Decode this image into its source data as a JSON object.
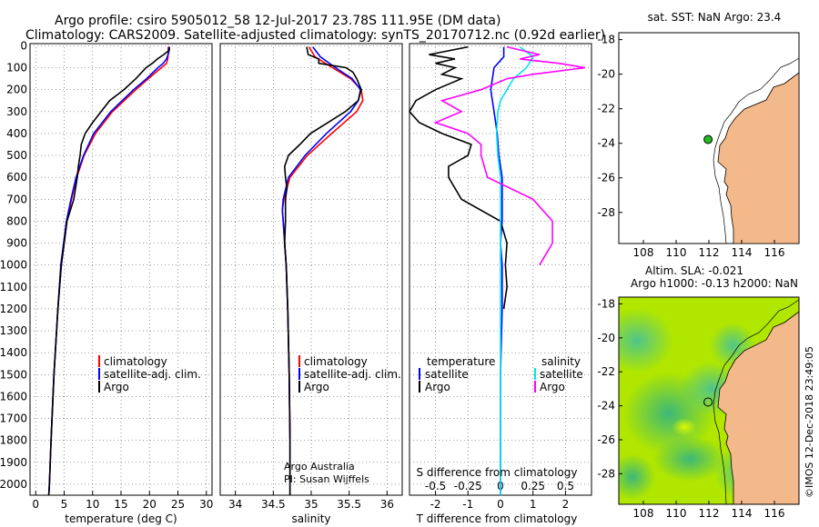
{
  "header": {
    "line1": "Argo profile: csiro 5905012_58 12-Jul-2017 23.78S 111.95E (DM data)",
    "line2": "Climatology: CARS2009. Satellite-adjusted climatology: synTS_20170712.nc (0.92d earlier)"
  },
  "colors": {
    "climatology": "#ff0000",
    "satellite": "#0000ff",
    "argo": "#000000",
    "sat_salinity": "#00e5ee",
    "argo_salinity": "#ff00ff",
    "land": "#f4b98a",
    "field": "#b0e600"
  },
  "depth_axis": {
    "ticks": [
      "0",
      "100",
      "200",
      "300",
      "400",
      "500",
      "600",
      "700",
      "800",
      "900",
      "1000",
      "1100",
      "1200",
      "1300",
      "1400",
      "1500",
      "1600",
      "1700",
      "1800",
      "1900",
      "2000"
    ]
  },
  "credits": {
    "line1": "Argo Australia",
    "line2": "PI: Susan Wijffels"
  },
  "watermark": "©IMOS 12-Dec-2018 23:49:05",
  "chart_data": [
    {
      "type": "line",
      "id": "temperature",
      "xlabel": "temperature (deg C)",
      "xlim": [
        -1,
        31
      ],
      "ylim": [
        2050,
        -10
      ],
      "xticks": [
        "0",
        "5",
        "10",
        "15",
        "20",
        "25",
        "30"
      ],
      "legend": [
        "climatology",
        "satellite-adj. clim.",
        "Argo"
      ],
      "series": [
        {
          "name": "climatology",
          "depth": [
            5,
            30,
            60,
            80,
            100,
            150,
            200,
            300,
            400,
            500,
            600,
            700,
            800,
            1000,
            1200,
            1500,
            1800,
            2000,
            2050
          ],
          "values": [
            23.3,
            23.3,
            23.2,
            23.0,
            22.1,
            19.8,
            17.6,
            13.5,
            10.5,
            8.5,
            7.2,
            6.3,
            5.5,
            4.5,
            3.9,
            3.2,
            2.7,
            2.4,
            2.3
          ]
        },
        {
          "name": "satellite-adj. clim.",
          "depth": [
            5,
            30,
            60,
            80,
            100,
            150,
            200,
            300,
            400,
            500,
            600,
            700,
            800,
            1000,
            1200,
            1500,
            1800,
            2000,
            2050
          ],
          "values": [
            23.4,
            23.4,
            23.0,
            22.4,
            21.5,
            19.5,
            17.2,
            13.2,
            10.2,
            8.4,
            7.1,
            6.2,
            5.4,
            4.4,
            3.9,
            3.2,
            2.7,
            2.4,
            2.3
          ]
        },
        {
          "name": "Argo",
          "depth": [
            5,
            20,
            40,
            60,
            80,
            100,
            150,
            200,
            250,
            300,
            350,
            400,
            450,
            500,
            550,
            600,
            700,
            800,
            900,
            1000,
            1200,
            1500,
            1800,
            2000,
            2050
          ],
          "values": [
            23.5,
            23.5,
            22.5,
            21.4,
            20.5,
            19.4,
            17.6,
            15.5,
            13.0,
            11.5,
            10.0,
            8.7,
            8.0,
            7.8,
            7.5,
            7.3,
            6.7,
            5.5,
            5.0,
            4.5,
            3.9,
            3.2,
            2.7,
            2.4,
            2.3
          ]
        }
      ]
    },
    {
      "type": "line",
      "id": "salinity",
      "xlabel": "salinity",
      "xlim": [
        33.8,
        36.2
      ],
      "ylim": [
        2050,
        -10
      ],
      "xticks": [
        "34",
        "34.5",
        "35",
        "35.5",
        "36"
      ],
      "legend": [
        "climatology",
        "satellite-adj. clim.",
        "Argo"
      ],
      "series": [
        {
          "name": "climatology",
          "depth": [
            5,
            50,
            100,
            150,
            200,
            250,
            300,
            400,
            500,
            600,
            700,
            750,
            800,
            900,
            1000,
            1200,
            1500,
            1800,
            2000,
            2050
          ],
          "values": [
            34.97,
            35.05,
            35.28,
            35.52,
            35.66,
            35.68,
            35.6,
            35.27,
            34.95,
            34.72,
            34.64,
            34.62,
            34.63,
            34.65,
            34.67,
            34.69,
            34.71,
            34.72,
            34.72,
            34.72
          ]
        },
        {
          "name": "satellite-adj. clim.",
          "depth": [
            5,
            50,
            100,
            150,
            200,
            250,
            300,
            400,
            500,
            600,
            700,
            750,
            800,
            900,
            1000,
            1200,
            1500,
            1800,
            2000,
            2050
          ],
          "values": [
            35.02,
            35.12,
            35.32,
            35.54,
            35.65,
            35.62,
            35.52,
            35.2,
            34.92,
            34.7,
            34.63,
            34.62,
            34.63,
            34.65,
            34.67,
            34.69,
            34.71,
            34.72,
            34.72,
            34.72
          ]
        },
        {
          "name": "Argo",
          "depth": [
            5,
            40,
            60,
            80,
            100,
            120,
            150,
            200,
            250,
            300,
            350,
            400,
            450,
            500,
            550,
            600,
            650,
            700,
            800,
            900,
            1000,
            1200,
            1500,
            1800,
            2000,
            2050
          ],
          "values": [
            34.94,
            34.96,
            35.1,
            35.1,
            35.46,
            35.55,
            35.6,
            35.66,
            35.62,
            35.45,
            35.22,
            34.99,
            34.85,
            34.7,
            34.65,
            34.66,
            34.68,
            34.66,
            34.66,
            34.65,
            34.67,
            34.69,
            34.71,
            34.72,
            34.72,
            34.72
          ]
        }
      ]
    },
    {
      "type": "line",
      "id": "differences",
      "xlabel": "T difference from climatology",
      "xlabel2": "S difference from climatology",
      "xlim": [
        -2.8,
        2.8
      ],
      "ylim": [
        2050,
        -10
      ],
      "xticks": [
        "-2",
        "-1",
        "0",
        "1",
        "2"
      ],
      "xticks_s": [
        "-0.5",
        "-0.25",
        "0",
        "0.25",
        "0.5"
      ],
      "legend_t_title": "temperature",
      "legend_s_title": "salinity",
      "legend": [
        "satellite",
        "Argo",
        "satellite",
        "Argo"
      ],
      "series": [
        {
          "name": "T satellite",
          "depth": [
            5,
            50,
            100,
            200,
            300,
            400,
            500,
            600,
            700,
            800,
            900,
            1000,
            1200,
            1500,
            2050
          ],
          "values": [
            0.1,
            0.1,
            -0.2,
            -0.3,
            -0.2,
            -0.1,
            -0.05,
            0.05,
            0.05,
            0.05,
            0.0,
            0.05,
            0.05,
            0.0,
            0.0
          ]
        },
        {
          "name": "T Argo",
          "depth": [
            5,
            40,
            60,
            80,
            100,
            130,
            150,
            200,
            250,
            300,
            350,
            400,
            450,
            500,
            550,
            600,
            700,
            800,
            900,
            1000,
            1100,
            1200
          ],
          "values": [
            -1.0,
            -2.2,
            -1.4,
            -2.0,
            -1.4,
            -1.8,
            -1.2,
            -2.0,
            -2.6,
            -2.8,
            -2.5,
            -1.8,
            -0.9,
            -1.0,
            -1.6,
            -1.6,
            -1.2,
            0.0,
            0.2,
            0.15,
            0.2,
            0.1
          ]
        },
        {
          "name": "S satellite",
          "depth": [
            5,
            50,
            100,
            150,
            200,
            250,
            300,
            400,
            500,
            600,
            700,
            800,
            1000,
            1200,
            1500,
            2050
          ],
          "values": [
            0.15,
            0.25,
            0.2,
            0.1,
            0.05,
            0.0,
            -0.02,
            -0.03,
            -0.02,
            0.0,
            0.0,
            0.0,
            0.0,
            0.0,
            0.0,
            0.0
          ]
        },
        {
          "name": "S Argo",
          "depth": [
            5,
            40,
            60,
            80,
            100,
            130,
            150,
            200,
            250,
            300,
            350,
            400,
            450,
            500,
            600,
            700,
            800,
            900,
            1000
          ],
          "values": [
            0.05,
            0.3,
            0.15,
            0.45,
            0.65,
            0.25,
            0.05,
            -0.15,
            -0.45,
            -0.3,
            -0.5,
            -0.25,
            -0.15,
            -0.15,
            -0.1,
            0.25,
            0.4,
            0.4,
            0.3
          ]
        }
      ]
    },
    {
      "type": "scatter",
      "id": "sst_map",
      "title": "sat. SST: NaN Argo: 23.4",
      "xlim": [
        106.5,
        117.5
      ],
      "ylim": [
        -29.8,
        -17.6
      ],
      "xticks": [
        "108",
        "110",
        "112",
        "114",
        "116"
      ],
      "yticks": [
        "-18",
        "-20",
        "-22",
        "-24",
        "-26",
        "-28"
      ],
      "point": {
        "lon": 111.95,
        "lat": -23.78
      }
    },
    {
      "type": "heatmap",
      "id": "sla_map",
      "title1": "Altim. SLA: -0.021",
      "title2": "Argo h1000: -0.13 h2000: NaN",
      "xlim": [
        106.5,
        117.5
      ],
      "ylim": [
        -29.8,
        -17.6
      ],
      "xticks": [
        "108",
        "110",
        "112",
        "114",
        "116"
      ],
      "yticks": [
        "-18",
        "-20",
        "-22",
        "-24",
        "-26",
        "-28"
      ],
      "point": {
        "lon": 111.95,
        "lat": -23.78
      }
    }
  ]
}
